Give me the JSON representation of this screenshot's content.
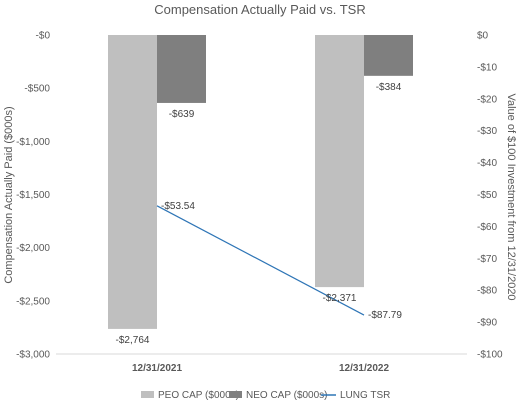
{
  "chart_data": {
    "type": "bar",
    "title": "Compensation Actually Paid vs. TSR",
    "categories": [
      "12/31/2021",
      "12/31/2022"
    ],
    "series": [
      {
        "name": "PEO CAP ($000s)",
        "type": "bar",
        "axis": "left",
        "color": "#bfbfbf",
        "values": [
          -2764,
          -2371
        ],
        "labels": [
          "-$2,764",
          "-$2,371"
        ]
      },
      {
        "name": "NEO CAP ($000s)",
        "type": "bar",
        "axis": "left",
        "color": "#7f7f7f",
        "values": [
          -639,
          -384
        ],
        "labels": [
          "-$639",
          "-$384"
        ]
      },
      {
        "name": "LUNG TSR",
        "type": "line",
        "axis": "right",
        "color": "#2e75b6",
        "values": [
          -53.54,
          -87.79
        ],
        "labels": [
          "-$53.54",
          "-$87.79"
        ]
      }
    ],
    "ylabel": "Compensation Actually Paid ($000s)",
    "y2label": "Value of $100 Investment from 12/31/2020",
    "ylim": [
      -3000,
      0
    ],
    "y2lim": [
      -100,
      0
    ],
    "yticks": [
      "-$0",
      "-$500",
      "-$1,000",
      "-$1,500",
      "-$2,000",
      "-$2,500",
      "-$3,000"
    ],
    "ytick_values": [
      0,
      -500,
      -1000,
      -1500,
      -2000,
      -2500,
      -3000
    ],
    "y2ticks": [
      "$0",
      "-$10",
      "-$20",
      "-$30",
      "-$40",
      "-$50",
      "-$60",
      "-$70",
      "-$80",
      "-$90",
      "-$100"
    ],
    "y2tick_values": [
      0,
      -10,
      -20,
      -30,
      -40,
      -50,
      -60,
      -70,
      -80,
      -90,
      -100
    ],
    "grid": false,
    "legend": "bottom"
  }
}
